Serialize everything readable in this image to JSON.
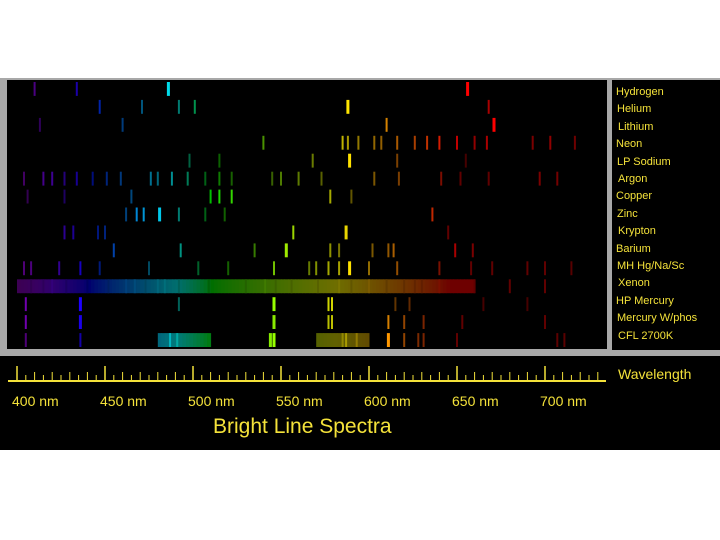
{
  "title": "Bright Line Spectra",
  "axis_label": "Wavelength",
  "colors": {
    "text": "#f4e23a",
    "frame": "#a8a8a8",
    "background": "#000000"
  },
  "elements": [
    {
      "label": "Hydrogen",
      "lines": [
        [
          410,
          0.5
        ],
        [
          434,
          0.6
        ],
        [
          486,
          0.9
        ],
        [
          656,
          1
        ]
      ]
    },
    {
      "label": "Helium",
      "lines": [
        [
          447,
          0.6
        ],
        [
          471,
          0.4
        ],
        [
          492,
          0.4
        ],
        [
          501,
          0.5
        ],
        [
          588,
          1
        ],
        [
          668,
          0.6
        ]
      ]
    },
    {
      "label": "Lithium",
      "lines": [
        [
          413,
          0.3
        ],
        [
          460,
          0.4
        ],
        [
          610,
          0.8
        ],
        [
          671,
          1
        ]
      ]
    },
    {
      "label": "Neon",
      "lines": [
        [
          540,
          0.5
        ],
        [
          585,
          0.7
        ],
        [
          588,
          0.6
        ],
        [
          594,
          0.5
        ],
        [
          603,
          0.5
        ],
        [
          607,
          0.5
        ],
        [
          616,
          0.6
        ],
        [
          626,
          0.6
        ],
        [
          633,
          0.7
        ],
        [
          640,
          0.8
        ],
        [
          650,
          0.7
        ],
        [
          660,
          0.5
        ],
        [
          667,
          0.6
        ],
        [
          693,
          0.4
        ],
        [
          703,
          0.5
        ],
        [
          717,
          0.4
        ]
      ]
    },
    {
      "label": "LP Sodium",
      "lines": [
        [
          589,
          1
        ],
        [
          498,
          0.3
        ],
        [
          515,
          0.3
        ],
        [
          568,
          0.4
        ],
        [
          616,
          0.4
        ],
        [
          655,
          0.2
        ]
      ]
    },
    {
      "label": "Argon",
      "lines": [
        [
          404,
          0.4
        ],
        [
          415,
          0.5
        ],
        [
          420,
          0.5
        ],
        [
          427,
          0.4
        ],
        [
          434,
          0.5
        ],
        [
          443,
          0.4
        ],
        [
          451,
          0.4
        ],
        [
          459,
          0.4
        ],
        [
          476,
          0.5
        ],
        [
          480,
          0.4
        ],
        [
          488,
          0.5
        ],
        [
          497,
          0.4
        ],
        [
          507,
          0.3
        ],
        [
          515,
          0.4
        ],
        [
          522,
          0.3
        ],
        [
          545,
          0.3
        ],
        [
          550,
          0.4
        ],
        [
          560,
          0.4
        ],
        [
          573,
          0.3
        ],
        [
          603,
          0.4
        ],
        [
          617,
          0.4
        ],
        [
          641,
          0.4
        ],
        [
          652,
          0.3
        ],
        [
          668,
          0.3
        ],
        [
          697,
          0.4
        ],
        [
          707,
          0.4
        ]
      ]
    },
    {
      "label": "Copper",
      "lines": [
        [
          406,
          0.3
        ],
        [
          427,
          0.3
        ],
        [
          465,
          0.4
        ],
        [
          510,
          0.7
        ],
        [
          515,
          0.8
        ],
        [
          522,
          0.8
        ],
        [
          578,
          0.6
        ],
        [
          590,
          0.3
        ]
      ]
    },
    {
      "label": "Zinc",
      "lines": [
        [
          462,
          0.4
        ],
        [
          468,
          0.8
        ],
        [
          472,
          0.8
        ],
        [
          481,
          0.9
        ],
        [
          492,
          0.4
        ],
        [
          507,
          0.3
        ],
        [
          518,
          0.3
        ],
        [
          636,
          0.7
        ]
      ]
    },
    {
      "label": "Krypton",
      "lines": [
        [
          427,
          0.5
        ],
        [
          432,
          0.5
        ],
        [
          446,
          0.4
        ],
        [
          450,
          0.4
        ],
        [
          557,
          0.8
        ],
        [
          587,
          0.9
        ],
        [
          645,
          0.3
        ]
      ]
    },
    {
      "label": "Barium",
      "lines": [
        [
          455,
          0.6
        ],
        [
          493,
          0.5
        ],
        [
          535,
          0.4
        ],
        [
          553,
          0.9
        ],
        [
          578,
          0.5
        ],
        [
          583,
          0.4
        ],
        [
          602,
          0.4
        ],
        [
          611,
          0.5
        ],
        [
          614,
          0.6
        ],
        [
          649,
          0.6
        ],
        [
          659,
          0.4
        ]
      ]
    },
    {
      "label": "MH    Hg/Na/Sc",
      "lines": [
        [
          404,
          0.5
        ],
        [
          408,
          0.5
        ],
        [
          424,
          0.5
        ],
        [
          436,
          0.7
        ],
        [
          447,
          0.4
        ],
        [
          475,
          0.3
        ],
        [
          503,
          0.3
        ],
        [
          520,
          0.3
        ],
        [
          546,
          0.7
        ],
        [
          566,
          0.4
        ],
        [
          570,
          0.5
        ],
        [
          577,
          0.6
        ],
        [
          583,
          0.6
        ],
        [
          589,
          1
        ],
        [
          600,
          0.5
        ],
        [
          616,
          0.5
        ],
        [
          640,
          0.4
        ],
        [
          658,
          0.3
        ],
        [
          670,
          0.3
        ],
        [
          690,
          0.3
        ],
        [
          700,
          0.3
        ],
        [
          715,
          0.3
        ]
      ]
    },
    {
      "label": "Xenon",
      "lines": [
        [
          408,
          0.3
        ],
        [
          415,
          0.3
        ],
        [
          420,
          0.4
        ],
        [
          428,
          0.3
        ],
        [
          440,
          0.3
        ],
        [
          452,
          0.3
        ],
        [
          462,
          0.4
        ],
        [
          467,
          0.4
        ],
        [
          473,
          0.3
        ],
        [
          480,
          0.4
        ],
        [
          484,
          0.4
        ],
        [
          492,
          0.3
        ],
        [
          509,
          0.3
        ],
        [
          530,
          0.3
        ],
        [
          541,
          0.4
        ],
        [
          547,
          0.3
        ],
        [
          556,
          0.3
        ],
        [
          571,
          0.3
        ],
        [
          583,
          0.4
        ],
        [
          590,
          0.3
        ],
        [
          600,
          0.4
        ],
        [
          610,
          0.3
        ],
        [
          620,
          0.3
        ],
        [
          626,
          0.3
        ],
        [
          630,
          0.3
        ],
        [
          640,
          0.4
        ],
        [
          660,
          0.3
        ],
        [
          680,
          0.3
        ],
        [
          700,
          0.3
        ]
      ]
    },
    {
      "label": "HP Mercury",
      "lines": [
        [
          405,
          0.8
        ],
        [
          436,
          1
        ],
        [
          492,
          0.3
        ],
        [
          546,
          1
        ],
        [
          577,
          0.8
        ],
        [
          579,
          0.8
        ],
        [
          615,
          0.3
        ],
        [
          623,
          0.3
        ],
        [
          665,
          0.2
        ],
        [
          690,
          0.2
        ]
      ]
    },
    {
      "label": "Mercury W/phos",
      "lines": [
        [
          405,
          0.8
        ],
        [
          436,
          0.9
        ],
        [
          546,
          0.9
        ],
        [
          577,
          0.7
        ],
        [
          579,
          0.7
        ],
        [
          611,
          0.8
        ],
        [
          620,
          0.5
        ],
        [
          631,
          0.4
        ],
        [
          653,
          0.3
        ],
        [
          700,
          0.3
        ]
      ]
    },
    {
      "label": "CFL 2700K",
      "lines": [
        [
          405,
          0.5
        ],
        [
          436,
          0.6
        ],
        [
          487,
          0.7
        ],
        [
          491,
          0.6
        ],
        [
          544,
          0.9
        ],
        [
          546,
          1
        ],
        [
          585,
          0.5
        ],
        [
          587,
          0.6
        ],
        [
          593,
          0.5
        ],
        [
          611,
          1
        ],
        [
          620,
          0.5
        ],
        [
          628,
          0.4
        ],
        [
          631,
          0.4
        ],
        [
          650,
          0.3
        ],
        [
          707,
          0.3
        ],
        [
          711,
          0.3
        ]
      ]
    }
  ],
  "ticks": [
    {
      "wl": 400,
      "label": "400 nm"
    },
    {
      "wl": 450,
      "label": "450 nm"
    },
    {
      "wl": 500,
      "label": "500 nm"
    },
    {
      "wl": 550,
      "label": "550 nm"
    },
    {
      "wl": 600,
      "label": "600 nm"
    },
    {
      "wl": 650,
      "label": "650 nm"
    },
    {
      "wl": 700,
      "label": "700 nm"
    }
  ],
  "axis_range": [
    380,
    720
  ],
  "continuum": [
    {
      "row": 11,
      "from": 400,
      "to": 660,
      "level": 0.35
    },
    {
      "row": 14,
      "from": 480,
      "to": 510,
      "level": 0.4
    },
    {
      "row": 14,
      "from": 570,
      "to": 600,
      "level": 0.3
    }
  ]
}
